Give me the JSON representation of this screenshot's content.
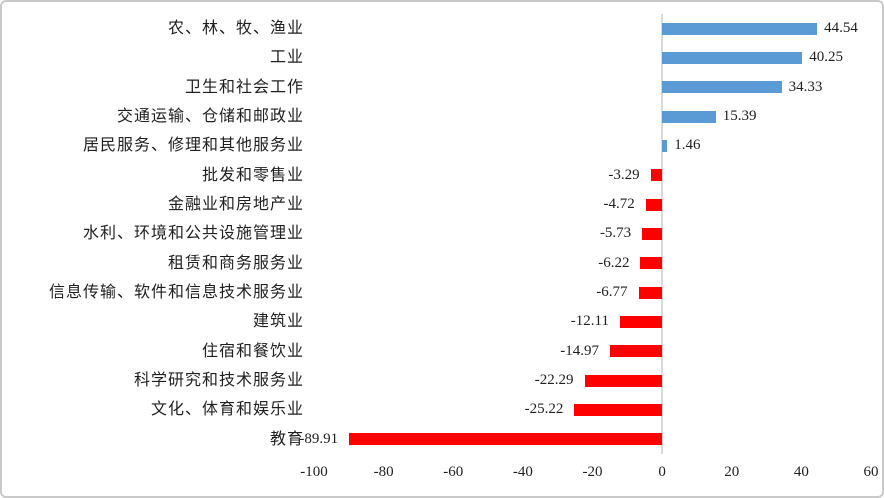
{
  "chart_data": {
    "type": "bar",
    "orientation": "horizontal",
    "title": "",
    "categories": [
      "农、林、牧、渔业",
      "工业",
      "卫生和社会工作",
      "交通运输、仓储和邮政业",
      "居民服务、修理和其他服务业",
      "批发和零售业",
      "金融业和房地产业",
      "水利、环境和公共设施管理业",
      "租赁和商务服务业",
      "信息传输、软件和信息技术服务业",
      "建筑业",
      "住宿和餐饮业",
      "科学研究和技术服务业",
      "文化、体育和娱乐业",
      "教育"
    ],
    "values": [
      44.54,
      40.25,
      34.33,
      15.39,
      1.46,
      -3.29,
      -4.72,
      -5.73,
      -6.22,
      -6.77,
      -12.11,
      -14.97,
      -22.29,
      -25.22,
      -89.91
    ],
    "x_ticks": [
      -100,
      -80,
      -60,
      -40,
      -20,
      0,
      20,
      40,
      60
    ],
    "xlim": [
      -100,
      60
    ],
    "grid": false,
    "legend": null,
    "data_labels": true,
    "colors": {
      "positive_bar": "#5B9BD5",
      "negative_bar": "#FF0000",
      "zero_axis_line": "#D9D9D9",
      "text": "#1f1f1f",
      "frame_border": "#c9c9c9"
    }
  }
}
